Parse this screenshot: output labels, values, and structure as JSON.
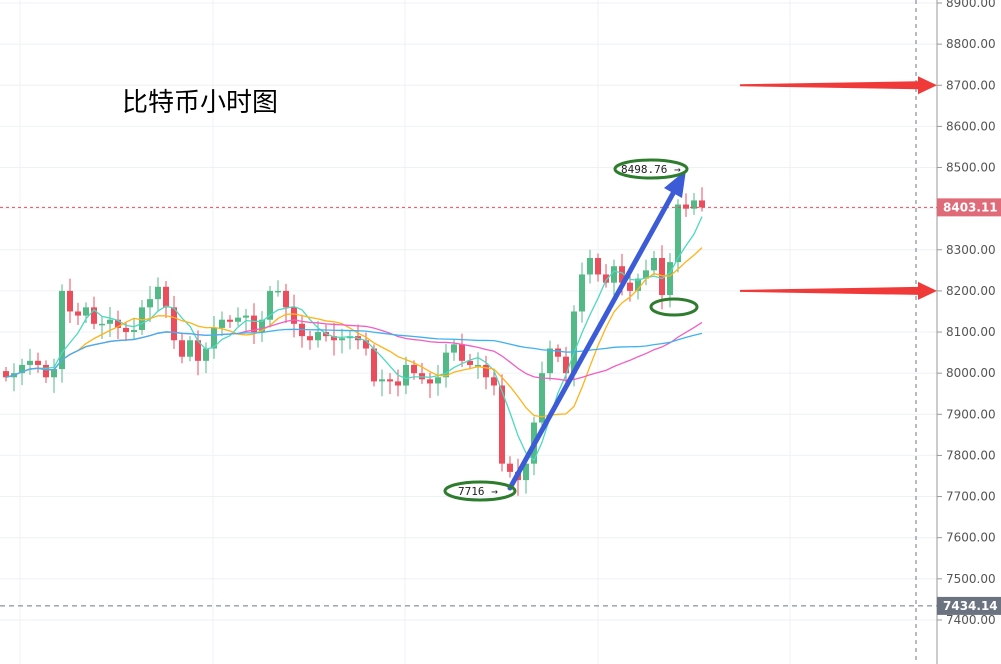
{
  "title": "比特币小时图",
  "chart_data": {
    "type": "candlestick",
    "title": "比特币小时图",
    "ylim": [
      7400,
      8900
    ],
    "yticks": [
      "8900.00",
      "8800.00",
      "8700.00",
      "8600.00",
      "8500.00",
      "8300.00",
      "8200.00",
      "8100.00",
      "8000.00",
      "7900.00",
      "7800.00",
      "7700.00",
      "7600.00",
      "7500.00",
      "7400.00"
    ],
    "grid": true,
    "colors": {
      "up": "#53b987",
      "down": "#eb4d5c",
      "ma5": "#4dd9c0",
      "ma10": "#ffb319",
      "ma30": "#f15ec4",
      "ma60": "#3fb1f0"
    },
    "moving_averages": [
      5,
      10,
      30,
      60
    ],
    "closes": [
      7990,
      8000,
      8020,
      8030,
      8020,
      7990,
      8010,
      8200,
      8150,
      8140,
      8160,
      8120,
      8120,
      8130,
      8110,
      8100,
      8105,
      8160,
      8180,
      8210,
      8160,
      8080,
      8040,
      8080,
      8030,
      8060,
      8110,
      8130,
      8125,
      8135,
      8140,
      8100,
      8130,
      8200,
      8200,
      8160,
      8120,
      8090,
      8080,
      8100,
      8090,
      8080,
      8085,
      8090,
      8080,
      8060,
      7980,
      7985,
      7980,
      7970,
      8020,
      8000,
      7985,
      7975,
      7990,
      8050,
      8070,
      8030,
      8020,
      8020,
      7990,
      7970,
      7780,
      7760,
      7740,
      7780,
      7880,
      8000,
      8060,
      8040,
      8000,
      8150,
      8240,
      8280,
      8240,
      8220,
      8260,
      8220,
      8200,
      8230,
      8250,
      8280,
      8190,
      8270,
      8410,
      8400,
      8420,
      8403
    ],
    "last_price": "8403.11",
    "low_line": "7434.14",
    "annotations": {
      "high": "8498.76 →",
      "low": "7716 →"
    },
    "targets": [
      8700,
      8200
    ]
  }
}
